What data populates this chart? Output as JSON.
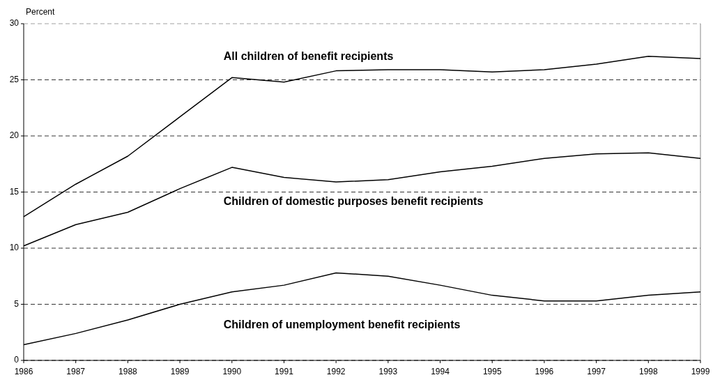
{
  "chart_data": {
    "type": "line",
    "ylabel": "Percent",
    "x": [
      1986,
      1987,
      1988,
      1989,
      1990,
      1991,
      1992,
      1993,
      1994,
      1995,
      1996,
      1997,
      1998,
      1999
    ],
    "series": [
      {
        "name": "All children of benefit recipients",
        "color": "#000000",
        "values": [
          12.8,
          15.7,
          18.2,
          21.7,
          25.2,
          24.8,
          25.8,
          25.9,
          25.9,
          25.7,
          25.9,
          26.4,
          27.1,
          26.9
        ]
      },
      {
        "name": "Children of domestic purposes benefit recipients",
        "color": "#000000",
        "values": [
          10.2,
          12.1,
          13.2,
          15.3,
          17.2,
          16.3,
          15.9,
          16.1,
          16.8,
          17.3,
          18.0,
          18.4,
          18.5,
          18.0
        ]
      },
      {
        "name": "Children of unemployment benefit recipients",
        "color": "#000000",
        "values": [
          1.4,
          2.4,
          3.6,
          5.0,
          6.1,
          6.7,
          7.8,
          7.5,
          6.7,
          5.8,
          5.3,
          5.3,
          5.8,
          6.1
        ]
      }
    ],
    "xlim": [
      1986,
      1999
    ],
    "xticks": [
      1986,
      1987,
      1988,
      1989,
      1990,
      1991,
      1992,
      1993,
      1994,
      1995,
      1996,
      1997,
      1998,
      1999
    ],
    "ylim": [
      0,
      30
    ],
    "yticks": [
      0,
      5,
      10,
      15,
      20,
      25,
      30
    ],
    "grid": "y",
    "marker": "none",
    "line_style": "solid"
  }
}
